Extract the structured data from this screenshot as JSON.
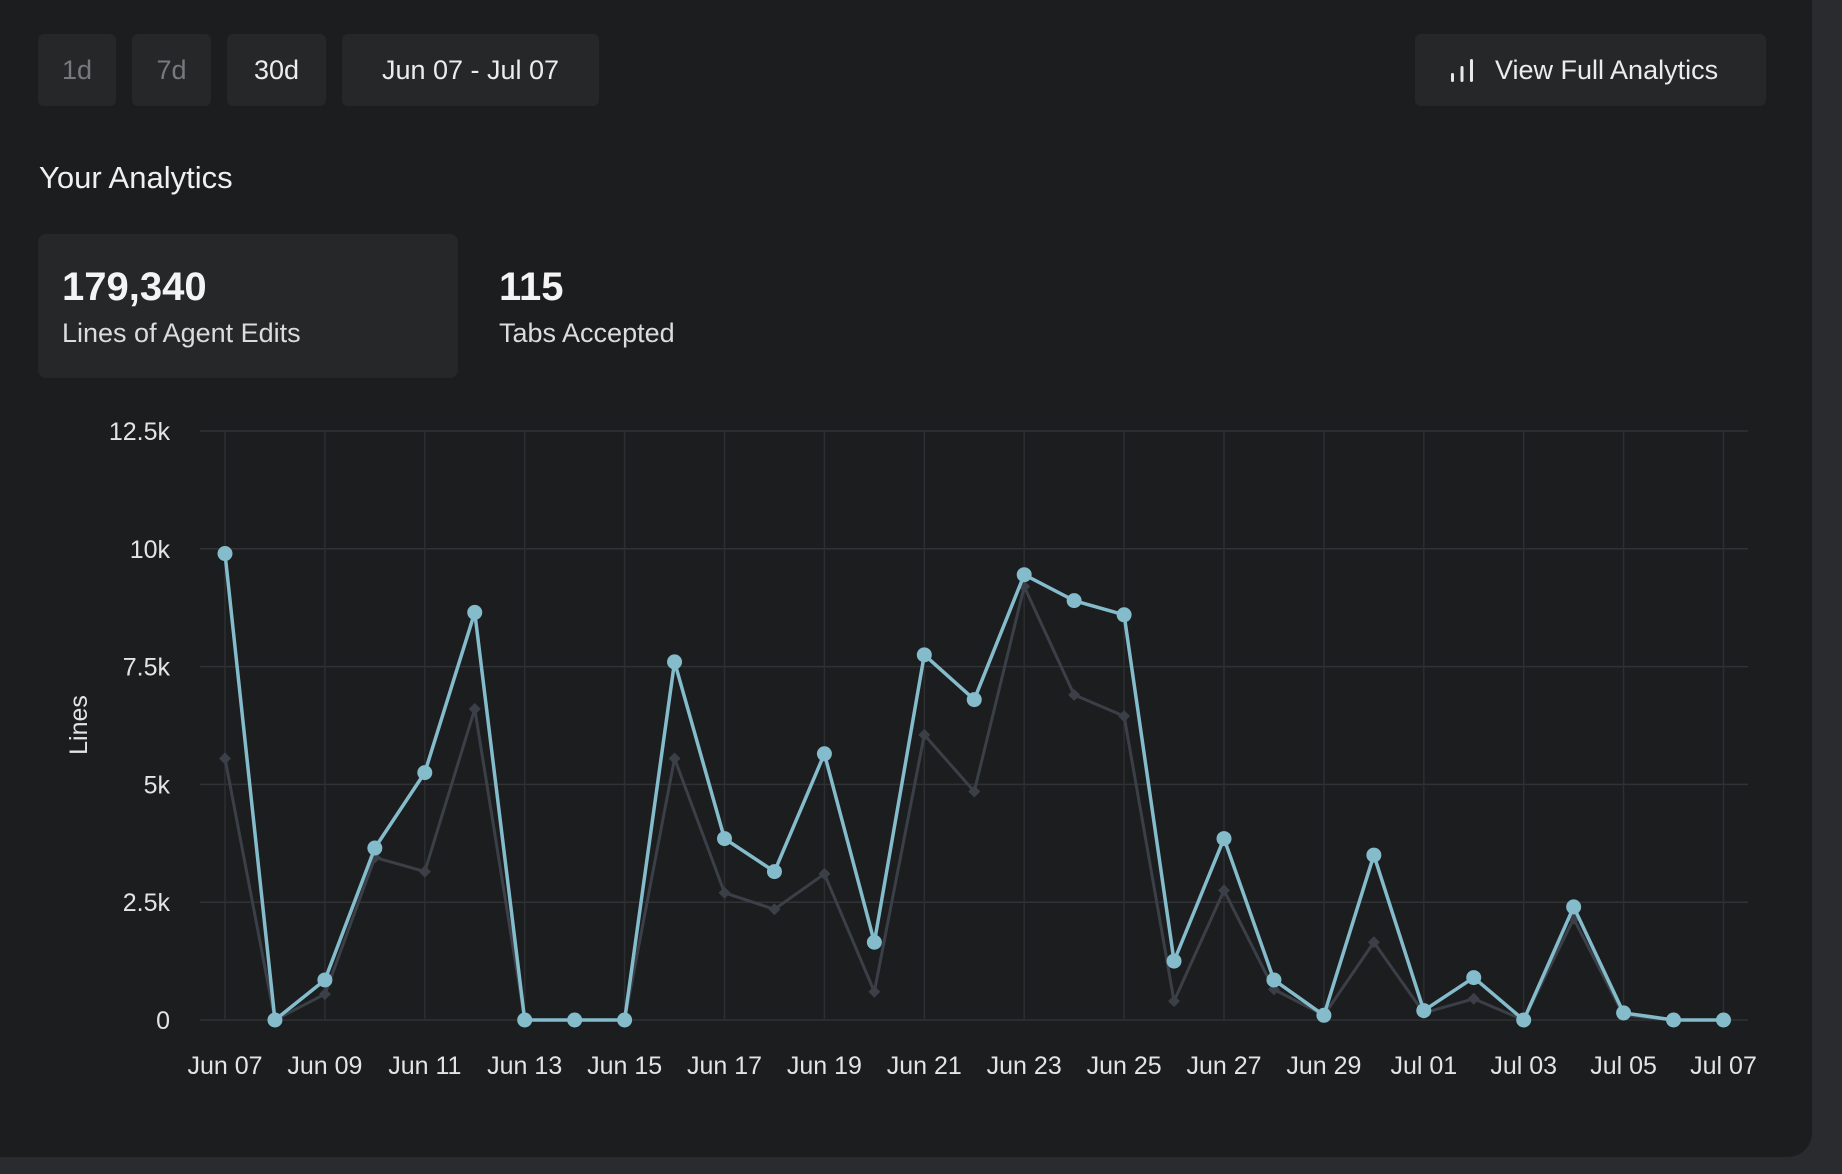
{
  "toolbar": {
    "range_1d": "1d",
    "range_7d": "7d",
    "range_30d": "30d",
    "date_range": "Jun 07 - Jul 07",
    "full_analytics": "View Full Analytics",
    "full_analytics_icon": "bar-chart-icon"
  },
  "section": {
    "title": "Your Analytics"
  },
  "stats": {
    "lines_value": "179,340",
    "lines_label": "Lines of Agent Edits",
    "tabs_value": "115",
    "tabs_label": "Tabs Accepted"
  },
  "colors": {
    "accent": "#84bccc",
    "secondary": "#3b3f47",
    "background": "#1c1d1f",
    "button": "#262729"
  },
  "chart_data": {
    "type": "line",
    "ylabel": "Lines",
    "ylim": [
      0,
      12500
    ],
    "yticks": [
      "0",
      "2.5k",
      "5k",
      "7.5k",
      "10k",
      "12.5k"
    ],
    "x_tick_labels": [
      "Jun 07",
      "Jun 09",
      "Jun 11",
      "Jun 13",
      "Jun 15",
      "Jun 17",
      "Jun 19",
      "Jun 21",
      "Jun 23",
      "Jun 25",
      "Jun 27",
      "Jun 29",
      "Jul 01",
      "Jul 03",
      "Jul 05",
      "Jul 07"
    ],
    "grid": true,
    "x": [
      "Jun 07",
      "Jun 08",
      "Jun 09",
      "Jun 10",
      "Jun 11",
      "Jun 12",
      "Jun 13",
      "Jun 14",
      "Jun 15",
      "Jun 16",
      "Jun 17",
      "Jun 18",
      "Jun 19",
      "Jun 20",
      "Jun 21",
      "Jun 22",
      "Jun 23",
      "Jun 24",
      "Jun 25",
      "Jun 26",
      "Jun 27",
      "Jun 28",
      "Jun 29",
      "Jun 30",
      "Jul 01",
      "Jul 02",
      "Jul 03",
      "Jul 04",
      "Jul 05",
      "Jul 06",
      "Jul 07"
    ],
    "series": [
      {
        "color": "#84bccc",
        "marker": "circle",
        "values": [
          9900,
          0,
          850,
          3650,
          5250,
          8650,
          0,
          0,
          0,
          7600,
          3850,
          3150,
          5650,
          1650,
          7750,
          6800,
          9450,
          8900,
          8600,
          1250,
          3850,
          850,
          100,
          3500,
          200,
          900,
          0,
          2400,
          150,
          0,
          0
        ]
      },
      {
        "color": "#3b3f47",
        "marker": "diamond",
        "values": [
          5550,
          0,
          550,
          3450,
          3150,
          6600,
          0,
          0,
          0,
          5550,
          2700,
          2350,
          3100,
          600,
          6050,
          4850,
          9200,
          6900,
          6450,
          400,
          2750,
          650,
          100,
          1650,
          150,
          450,
          0,
          2150,
          100,
          0,
          0
        ]
      }
    ]
  }
}
